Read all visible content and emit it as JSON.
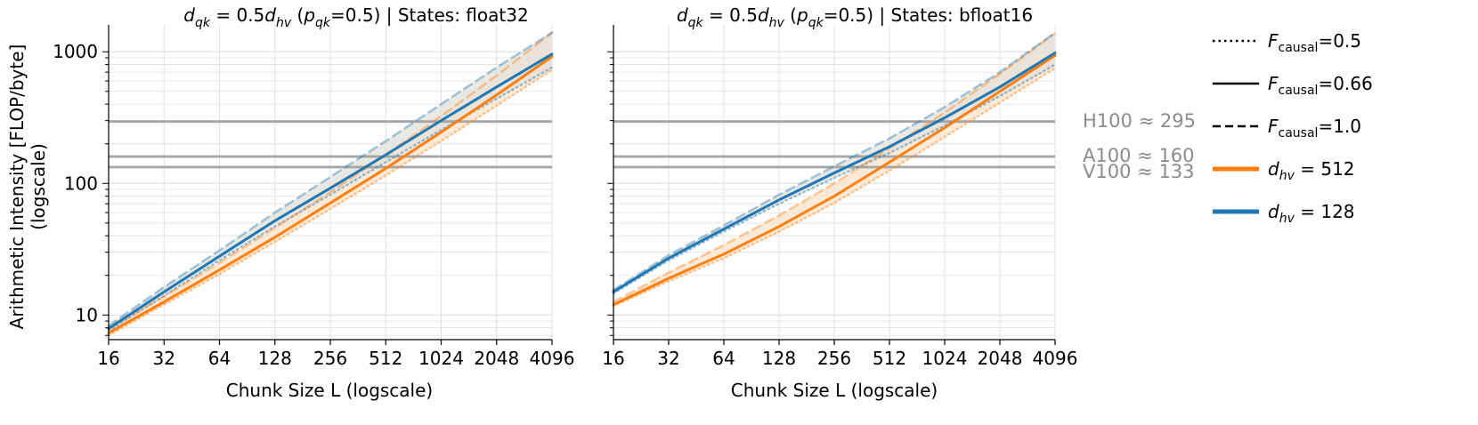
{
  "chart_data": [
    {
      "type": "line",
      "title": "d_qk = 0.5d_hv (p_qk=0.5) | States: float32",
      "title_parts": {
        "math": "d",
        "sub1": "qk",
        "eq": " = 0.5",
        "math2": "d",
        "sub2": "hv",
        "paren_a": " (",
        "math3": "p",
        "sub3": "qk",
        "paren_b": "=0.5) | States: float32"
      },
      "xlabel": "Chunk Size L (logscale)",
      "ylabel": "Arithmetic Intensity [FLOP/byte] (logscale)",
      "ylabel_lines": [
        "Arithmetic Intensity [FLOP/byte]",
        "(logscale)"
      ],
      "x_scale": "log2",
      "y_scale": "log10",
      "xlim": [
        16,
        4096
      ],
      "ylim": [
        6.5,
        1600
      ],
      "x": [
        16,
        32,
        64,
        128,
        256,
        512,
        1024,
        2048,
        4096
      ],
      "x_tick_labels": [
        "16",
        "32",
        "64",
        "128",
        "256",
        "512",
        "1024",
        "2048",
        "4096"
      ],
      "y_ticks": [
        10,
        100,
        1000
      ],
      "y_tick_labels": [
        "10",
        "100",
        "1000"
      ],
      "reference_lines": [
        {
          "name": "H100",
          "value": 295
        },
        {
          "name": "A100",
          "value": 160
        },
        {
          "name": "V100",
          "value": 133
        }
      ],
      "series": [
        {
          "name": "d_hv = 512, F_causal = 0.66",
          "d_hv": 512,
          "f_causal": 0.66,
          "style": "solid",
          "values": [
            7.3,
            12.6,
            22,
            39,
            71,
            130,
            245,
            470,
            920
          ]
        },
        {
          "name": "d_hv = 512, F_causal = 0.5",
          "d_hv": 512,
          "f_causal": 0.5,
          "style": "dotted",
          "values": [
            7.0,
            12,
            20.5,
            36,
            64,
            115,
            210,
            390,
            730
          ]
        },
        {
          "name": "d_hv = 512, F_causal = 1.0",
          "d_hv": 512,
          "f_causal": 1.0,
          "style": "dashed",
          "values": [
            7.8,
            13.8,
            25,
            46,
            86,
            165,
            325,
            660,
            1400
          ]
        },
        {
          "name": "d_hv = 128, F_causal = 0.66",
          "d_hv": 128,
          "f_causal": 0.66,
          "style": "solid",
          "values": [
            7.9,
            15,
            28,
            52,
            92,
            165,
            300,
            540,
            960
          ]
        },
        {
          "name": "d_hv = 128, F_causal = 0.5",
          "d_hv": 128,
          "f_causal": 0.5,
          "style": "dotted",
          "values": [
            7.6,
            14,
            26,
            47,
            82,
            145,
            255,
            440,
            760
          ]
        },
        {
          "name": "d_hv = 128, F_causal = 1.0",
          "d_hv": 128,
          "f_causal": 1.0,
          "style": "dashed",
          "values": [
            8.3,
            16.3,
            31,
            60,
            112,
            210,
            400,
            760,
            1400
          ]
        }
      ]
    },
    {
      "type": "line",
      "title": "d_qk = 0.5d_hv (p_qk=0.5) | States: bfloat16",
      "title_parts": {
        "math": "d",
        "sub1": "qk",
        "eq": " = 0.5",
        "math2": "d",
        "sub2": "hv",
        "paren_a": " (",
        "math3": "p",
        "sub3": "qk",
        "paren_b": "=0.5) | States: bfloat16"
      },
      "xlabel": "Chunk Size L (logscale)",
      "x_scale": "log2",
      "y_scale": "log10",
      "xlim": [
        16,
        4096
      ],
      "ylim": [
        6.5,
        1600
      ],
      "x": [
        16,
        32,
        64,
        128,
        256,
        512,
        1024,
        2048,
        4096
      ],
      "x_tick_labels": [
        "16",
        "32",
        "64",
        "128",
        "256",
        "512",
        "1024",
        "2048",
        "4096"
      ],
      "reference_lines": [
        {
          "name": "H100",
          "value": 295
        },
        {
          "name": "A100",
          "value": 160
        },
        {
          "name": "V100",
          "value": 133
        }
      ],
      "series": [
        {
          "name": "d_hv = 512, F_causal = 0.66",
          "d_hv": 512,
          "f_causal": 0.66,
          "style": "solid",
          "values": [
            12,
            19,
            29,
            47,
            80,
            145,
            265,
            500,
            940
          ]
        },
        {
          "name": "d_hv = 512, F_causal = 0.5",
          "d_hv": 512,
          "f_causal": 0.5,
          "style": "dotted",
          "values": [
            11.7,
            18,
            27,
            43,
            71,
            125,
            225,
            410,
            750
          ]
        },
        {
          "name": "d_hv = 512, F_causal = 1.0",
          "d_hv": 512,
          "f_causal": 1.0,
          "style": "dashed",
          "values": [
            12.6,
            21,
            34,
            57,
            100,
            185,
            345,
            680,
            1380
          ]
        },
        {
          "name": "d_hv = 128, F_causal = 0.66",
          "d_hv": 128,
          "f_causal": 0.66,
          "style": "solid",
          "values": [
            15,
            27,
            45,
            75,
            120,
            190,
            315,
            540,
            980
          ]
        },
        {
          "name": "d_hv = 128, F_causal = 0.5",
          "d_hv": 128,
          "f_causal": 0.5,
          "style": "dotted",
          "values": [
            14.6,
            26,
            43,
            70,
            110,
            170,
            275,
            460,
            800
          ]
        },
        {
          "name": "d_hv = 128, F_causal = 1.0",
          "d_hv": 128,
          "f_causal": 1.0,
          "style": "dashed",
          "values": [
            15.5,
            28.5,
            48,
            82,
            135,
            220,
            380,
            700,
            1400
          ]
        }
      ]
    }
  ],
  "reference_labels": [
    {
      "name": "H100",
      "sym": "≈",
      "value": "295"
    },
    {
      "name": "A100",
      "sym": "≈",
      "value": "160"
    },
    {
      "name": "V100",
      "sym": "≈",
      "value": "133"
    }
  ],
  "legend": {
    "position": "right",
    "entries": [
      {
        "kind": "dotted",
        "math": "F",
        "sub": "causal",
        "rest": "=0.5"
      },
      {
        "kind": "solid",
        "math": "F",
        "sub": "causal",
        "rest": "=0.66"
      },
      {
        "kind": "dashed",
        "math": "F",
        "sub": "causal",
        "rest": "=1.0"
      },
      {
        "kind": "orange",
        "math": "d",
        "sub": "hv",
        "rest": " = 512"
      },
      {
        "kind": "blue",
        "math": "d",
        "sub": "hv",
        "rest": " = 128"
      }
    ]
  },
  "colors": {
    "orange": "#ff7f0e",
    "blue": "#1f77b4",
    "orange_fill": "#fbe3cc",
    "blue_fill": "#e3e0da",
    "reference": "#a6a6a6",
    "reference_text": "#8c8c8c",
    "grid": "#e0e0e0",
    "axis": "#000000"
  }
}
